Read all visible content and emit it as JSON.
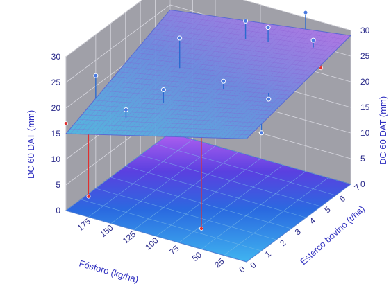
{
  "chart_data": {
    "type": "surface3d",
    "title": "",
    "xlabel": "Fósforo (kg/ha)",
    "ylabel": "Esterco bovino (t/ha)",
    "zlabel_left": "DC 60 DAT (mm)",
    "zlabel_right": "DC 60 DAT (mm)",
    "x_ticks": [
      "0",
      "25",
      "50",
      "75",
      "100",
      "125",
      "150",
      "175"
    ],
    "y_ticks": [
      "0",
      "1",
      "2",
      "3",
      "4",
      "5",
      "6",
      "7"
    ],
    "z_ticks_left": [
      "0",
      "5",
      "10",
      "15",
      "20",
      "25",
      "30"
    ],
    "z_ticks_right": [
      "0",
      "5",
      "10",
      "15",
      "20",
      "25",
      "30"
    ],
    "xlim": [
      0,
      200
    ],
    "ylim": [
      0,
      7
    ],
    "zlim": [
      0,
      30
    ],
    "surface_corners": [
      {
        "x": 0,
        "y": 0,
        "z": 24
      },
      {
        "x": 200,
        "y": 0,
        "z": 15
      },
      {
        "x": 200,
        "y": 7,
        "z": 24
      },
      {
        "x": 0,
        "y": 7,
        "z": 29
      }
    ],
    "points": [
      {
        "x": 200,
        "y": 0,
        "z": 17,
        "above": false
      },
      {
        "x": 200,
        "y": 2,
        "z": 22,
        "above": true
      },
      {
        "x": 175,
        "y": 0,
        "z": 4,
        "above": false
      },
      {
        "x": 150,
        "y": 1,
        "z": 20,
        "above": true
      },
      {
        "x": 125,
        "y": 2,
        "z": 23,
        "above": true
      },
      {
        "x": 140,
        "y": 4,
        "z": 28,
        "above": true
      },
      {
        "x": 100,
        "y": 6,
        "z": 29,
        "above": true
      },
      {
        "x": 75,
        "y": 3,
        "z": 25,
        "above": true
      },
      {
        "x": 75,
        "y": 6,
        "z": 29,
        "above": true
      },
      {
        "x": 50,
        "y": 7,
        "z": 31,
        "above": true
      },
      {
        "x": 25,
        "y": 6,
        "z": 29,
        "above": true
      },
      {
        "x": 25,
        "y": 3,
        "z": 24,
        "above": true
      },
      {
        "x": 50,
        "y": 0,
        "z": 4,
        "above": false
      },
      {
        "x": 0,
        "y": 1,
        "z": 23,
        "above": true
      },
      {
        "x": 0,
        "y": 5,
        "z": 27,
        "above": false
      }
    ],
    "colors": {
      "surface_low": "#4fb8e0",
      "surface_high": "#c070e8",
      "mesh": "#8a5ad0",
      "floor_far": "#b060f0",
      "floor_mid": "#2a5ae0",
      "floor_near": "#3aaaf0",
      "wall": "#a0a0a8",
      "grid": "#d8d8e0",
      "stem_above": "#2a6ad0",
      "stem_below": "#e03030",
      "marker_above": "#4a7ae0",
      "marker_below": "#e03030"
    },
    "grid": true
  }
}
